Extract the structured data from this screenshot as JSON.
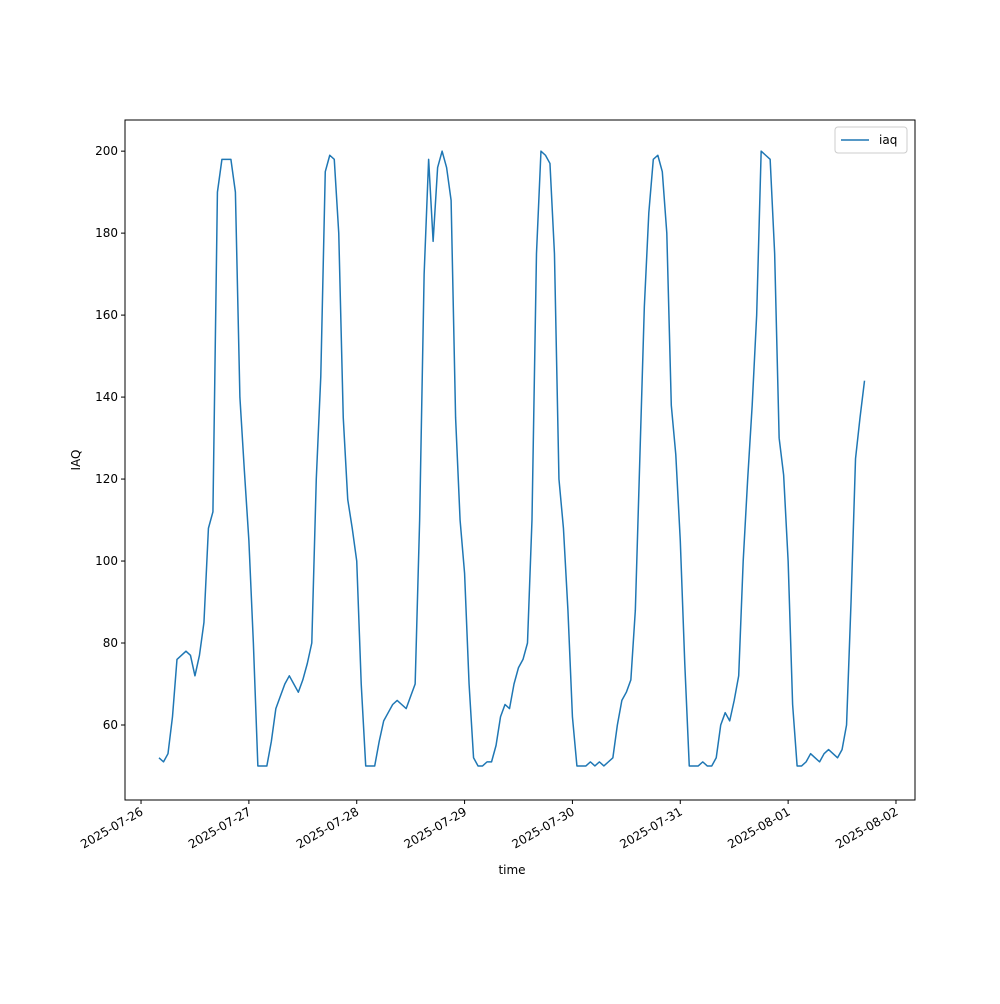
{
  "chart_data": {
    "type": "line",
    "xlabel": "time",
    "ylabel": "IAQ",
    "x": [
      "2025-07-26 04:00",
      "2025-07-26 05:00",
      "2025-07-26 06:00",
      "2025-07-26 07:00",
      "2025-07-26 08:00",
      "2025-07-26 09:00",
      "2025-07-26 10:00",
      "2025-07-26 11:00",
      "2025-07-26 12:00",
      "2025-07-26 13:00",
      "2025-07-26 14:00",
      "2025-07-26 15:00",
      "2025-07-26 16:00",
      "2025-07-26 17:00",
      "2025-07-26 18:00",
      "2025-07-26 19:00",
      "2025-07-26 20:00",
      "2025-07-26 21:00",
      "2025-07-26 22:00",
      "2025-07-26 23:00",
      "2025-07-27 00:00",
      "2025-07-27 01:00",
      "2025-07-27 02:00",
      "2025-07-27 03:00",
      "2025-07-27 04:00",
      "2025-07-27 05:00",
      "2025-07-27 06:00",
      "2025-07-27 07:00",
      "2025-07-27 08:00",
      "2025-07-27 09:00",
      "2025-07-27 10:00",
      "2025-07-27 11:00",
      "2025-07-27 12:00",
      "2025-07-27 13:00",
      "2025-07-27 14:00",
      "2025-07-27 15:00",
      "2025-07-27 16:00",
      "2025-07-27 17:00",
      "2025-07-27 18:00",
      "2025-07-27 19:00",
      "2025-07-27 20:00",
      "2025-07-27 21:00",
      "2025-07-27 22:00",
      "2025-07-27 23:00",
      "2025-07-28 00:00",
      "2025-07-28 01:00",
      "2025-07-28 02:00",
      "2025-07-28 03:00",
      "2025-07-28 04:00",
      "2025-07-28 05:00",
      "2025-07-28 06:00",
      "2025-07-28 07:00",
      "2025-07-28 08:00",
      "2025-07-28 09:00",
      "2025-07-28 10:00",
      "2025-07-28 11:00",
      "2025-07-28 12:00",
      "2025-07-28 13:00",
      "2025-07-28 14:00",
      "2025-07-28 15:00",
      "2025-07-28 16:00",
      "2025-07-28 17:00",
      "2025-07-28 18:00",
      "2025-07-28 19:00",
      "2025-07-28 20:00",
      "2025-07-28 21:00",
      "2025-07-28 22:00",
      "2025-07-28 23:00",
      "2025-07-29 00:00",
      "2025-07-29 01:00",
      "2025-07-29 02:00",
      "2025-07-29 03:00",
      "2025-07-29 04:00",
      "2025-07-29 05:00",
      "2025-07-29 06:00",
      "2025-07-29 07:00",
      "2025-07-29 08:00",
      "2025-07-29 09:00",
      "2025-07-29 10:00",
      "2025-07-29 11:00",
      "2025-07-29 12:00",
      "2025-07-29 13:00",
      "2025-07-29 14:00",
      "2025-07-29 15:00",
      "2025-07-29 16:00",
      "2025-07-29 17:00",
      "2025-07-29 18:00",
      "2025-07-29 19:00",
      "2025-07-29 20:00",
      "2025-07-29 21:00",
      "2025-07-29 22:00",
      "2025-07-29 23:00",
      "2025-07-30 00:00",
      "2025-07-30 01:00",
      "2025-07-30 02:00",
      "2025-07-30 03:00",
      "2025-07-30 04:00",
      "2025-07-30 05:00",
      "2025-07-30 06:00",
      "2025-07-30 07:00",
      "2025-07-30 08:00",
      "2025-07-30 09:00",
      "2025-07-30 10:00",
      "2025-07-30 11:00",
      "2025-07-30 12:00",
      "2025-07-30 13:00",
      "2025-07-30 14:00",
      "2025-07-30 15:00",
      "2025-07-30 16:00",
      "2025-07-30 17:00",
      "2025-07-30 18:00",
      "2025-07-30 19:00",
      "2025-07-30 20:00",
      "2025-07-30 21:00",
      "2025-07-30 22:00",
      "2025-07-30 23:00",
      "2025-07-31 00:00",
      "2025-07-31 01:00",
      "2025-07-31 02:00",
      "2025-07-31 03:00",
      "2025-07-31 04:00",
      "2025-07-31 05:00",
      "2025-07-31 06:00",
      "2025-07-31 07:00",
      "2025-07-31 08:00",
      "2025-07-31 09:00",
      "2025-07-31 10:00",
      "2025-07-31 11:00",
      "2025-07-31 12:00",
      "2025-07-31 13:00",
      "2025-07-31 14:00",
      "2025-07-31 15:00",
      "2025-07-31 16:00",
      "2025-07-31 17:00",
      "2025-07-31 18:00",
      "2025-07-31 19:00",
      "2025-07-31 20:00",
      "2025-07-31 21:00",
      "2025-07-31 22:00",
      "2025-07-31 23:00",
      "2025-08-01 00:00",
      "2025-08-01 01:00",
      "2025-08-01 02:00",
      "2025-08-01 03:00",
      "2025-08-01 04:00",
      "2025-08-01 05:00",
      "2025-08-01 06:00",
      "2025-08-01 07:00",
      "2025-08-01 08:00",
      "2025-08-01 09:00",
      "2025-08-01 10:00",
      "2025-08-01 11:00",
      "2025-08-01 12:00",
      "2025-08-01 13:00",
      "2025-08-01 14:00",
      "2025-08-01 15:00",
      "2025-08-01 16:00",
      "2025-08-01 17:00"
    ],
    "series": [
      {
        "name": "iaq",
        "color": "#1f77b4",
        "values": [
          52,
          51,
          53,
          62,
          76,
          77,
          78,
          77,
          72,
          77,
          85,
          108,
          112,
          190,
          198,
          198,
          198,
          190,
          140,
          122,
          105,
          80,
          50,
          50,
          50,
          56,
          64,
          67,
          70,
          72,
          70,
          68,
          71,
          75,
          80,
          120,
          145,
          195,
          199,
          198,
          180,
          135,
          115,
          108,
          100,
          70,
          50,
          50,
          50,
          56,
          61,
          63,
          65,
          66,
          65,
          64,
          67,
          70,
          110,
          170,
          198,
          178,
          196,
          200,
          196,
          188,
          135,
          110,
          97,
          70,
          52,
          50,
          50,
          51,
          51,
          55,
          62,
          65,
          64,
          70,
          74,
          76,
          80,
          110,
          175,
          200,
          199,
          197,
          175,
          120,
          108,
          88,
          62,
          50,
          50,
          50,
          51,
          50,
          51,
          50,
          51,
          52,
          60,
          66,
          68,
          71,
          88,
          125,
          162,
          185,
          198,
          199,
          195,
          180,
          138,
          126,
          105,
          75,
          50,
          50,
          50,
          51,
          50,
          50,
          52,
          60,
          63,
          61,
          66,
          72,
          100,
          120,
          138,
          160,
          200,
          199,
          198,
          175,
          130,
          121,
          100,
          65,
          50,
          50,
          51,
          53,
          52,
          51,
          53,
          54,
          53,
          52,
          54,
          60,
          90,
          125,
          135,
          144
        ]
      }
    ],
    "xlim": [
      "2025-07-25 20:26",
      "2025-08-02 04:14"
    ],
    "xticks": [
      "2025-07-26",
      "2025-07-27",
      "2025-07-28",
      "2025-07-29",
      "2025-07-30",
      "2025-07-31",
      "2025-08-01",
      "2025-08-02"
    ],
    "ylim": [
      41.7,
      207.6
    ],
    "yticks": [
      60,
      80,
      100,
      120,
      140,
      160,
      180,
      200
    ],
    "grid": false,
    "legend": "upper right"
  }
}
